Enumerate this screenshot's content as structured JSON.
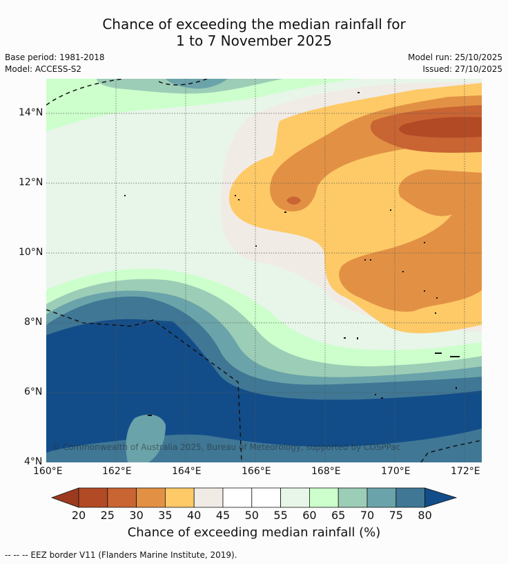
{
  "title": {
    "line1": "Chance of exceeding the median rainfall for",
    "line2": "1 to 7 November 2025"
  },
  "meta": {
    "base_period": "Base period: 1981-2018",
    "model": "Model: ACCESS-S2",
    "model_run": "Model run: 25/10/2025",
    "issued": "Issued: 27/10/2025"
  },
  "map": {
    "lon_labels": [
      "160°E",
      "162°E",
      "164°E",
      "166°E",
      "168°E",
      "170°E",
      "172°E"
    ],
    "lat_labels": [
      "14°N",
      "12°N",
      "10°N",
      "8°N",
      "6°N",
      "4°N"
    ],
    "copyright": "© Commonwealth of Australia 2025, Bureau of Meteorology, supported by COSPPac"
  },
  "colorbar": {
    "ticks": [
      "20",
      "25",
      "30",
      "35",
      "40",
      "45",
      "50",
      "55",
      "60",
      "65",
      "70",
      "75",
      "80"
    ],
    "colors": [
      "#9c3a1f",
      "#b24a26",
      "#c96433",
      "#e29144",
      "#fdca67",
      "#f1ebe6",
      "#ffffff",
      "#ffffff",
      "#e8f5e9",
      "#ccffcc",
      "#9ccdb6",
      "#6ba3aa",
      "#3f7795",
      "#134d89"
    ],
    "label": "Chance of exceeding median rainfall (%)"
  },
  "footer": "--  --  -- EEZ border V11 (Flanders Marine Institute, 2019)."
}
